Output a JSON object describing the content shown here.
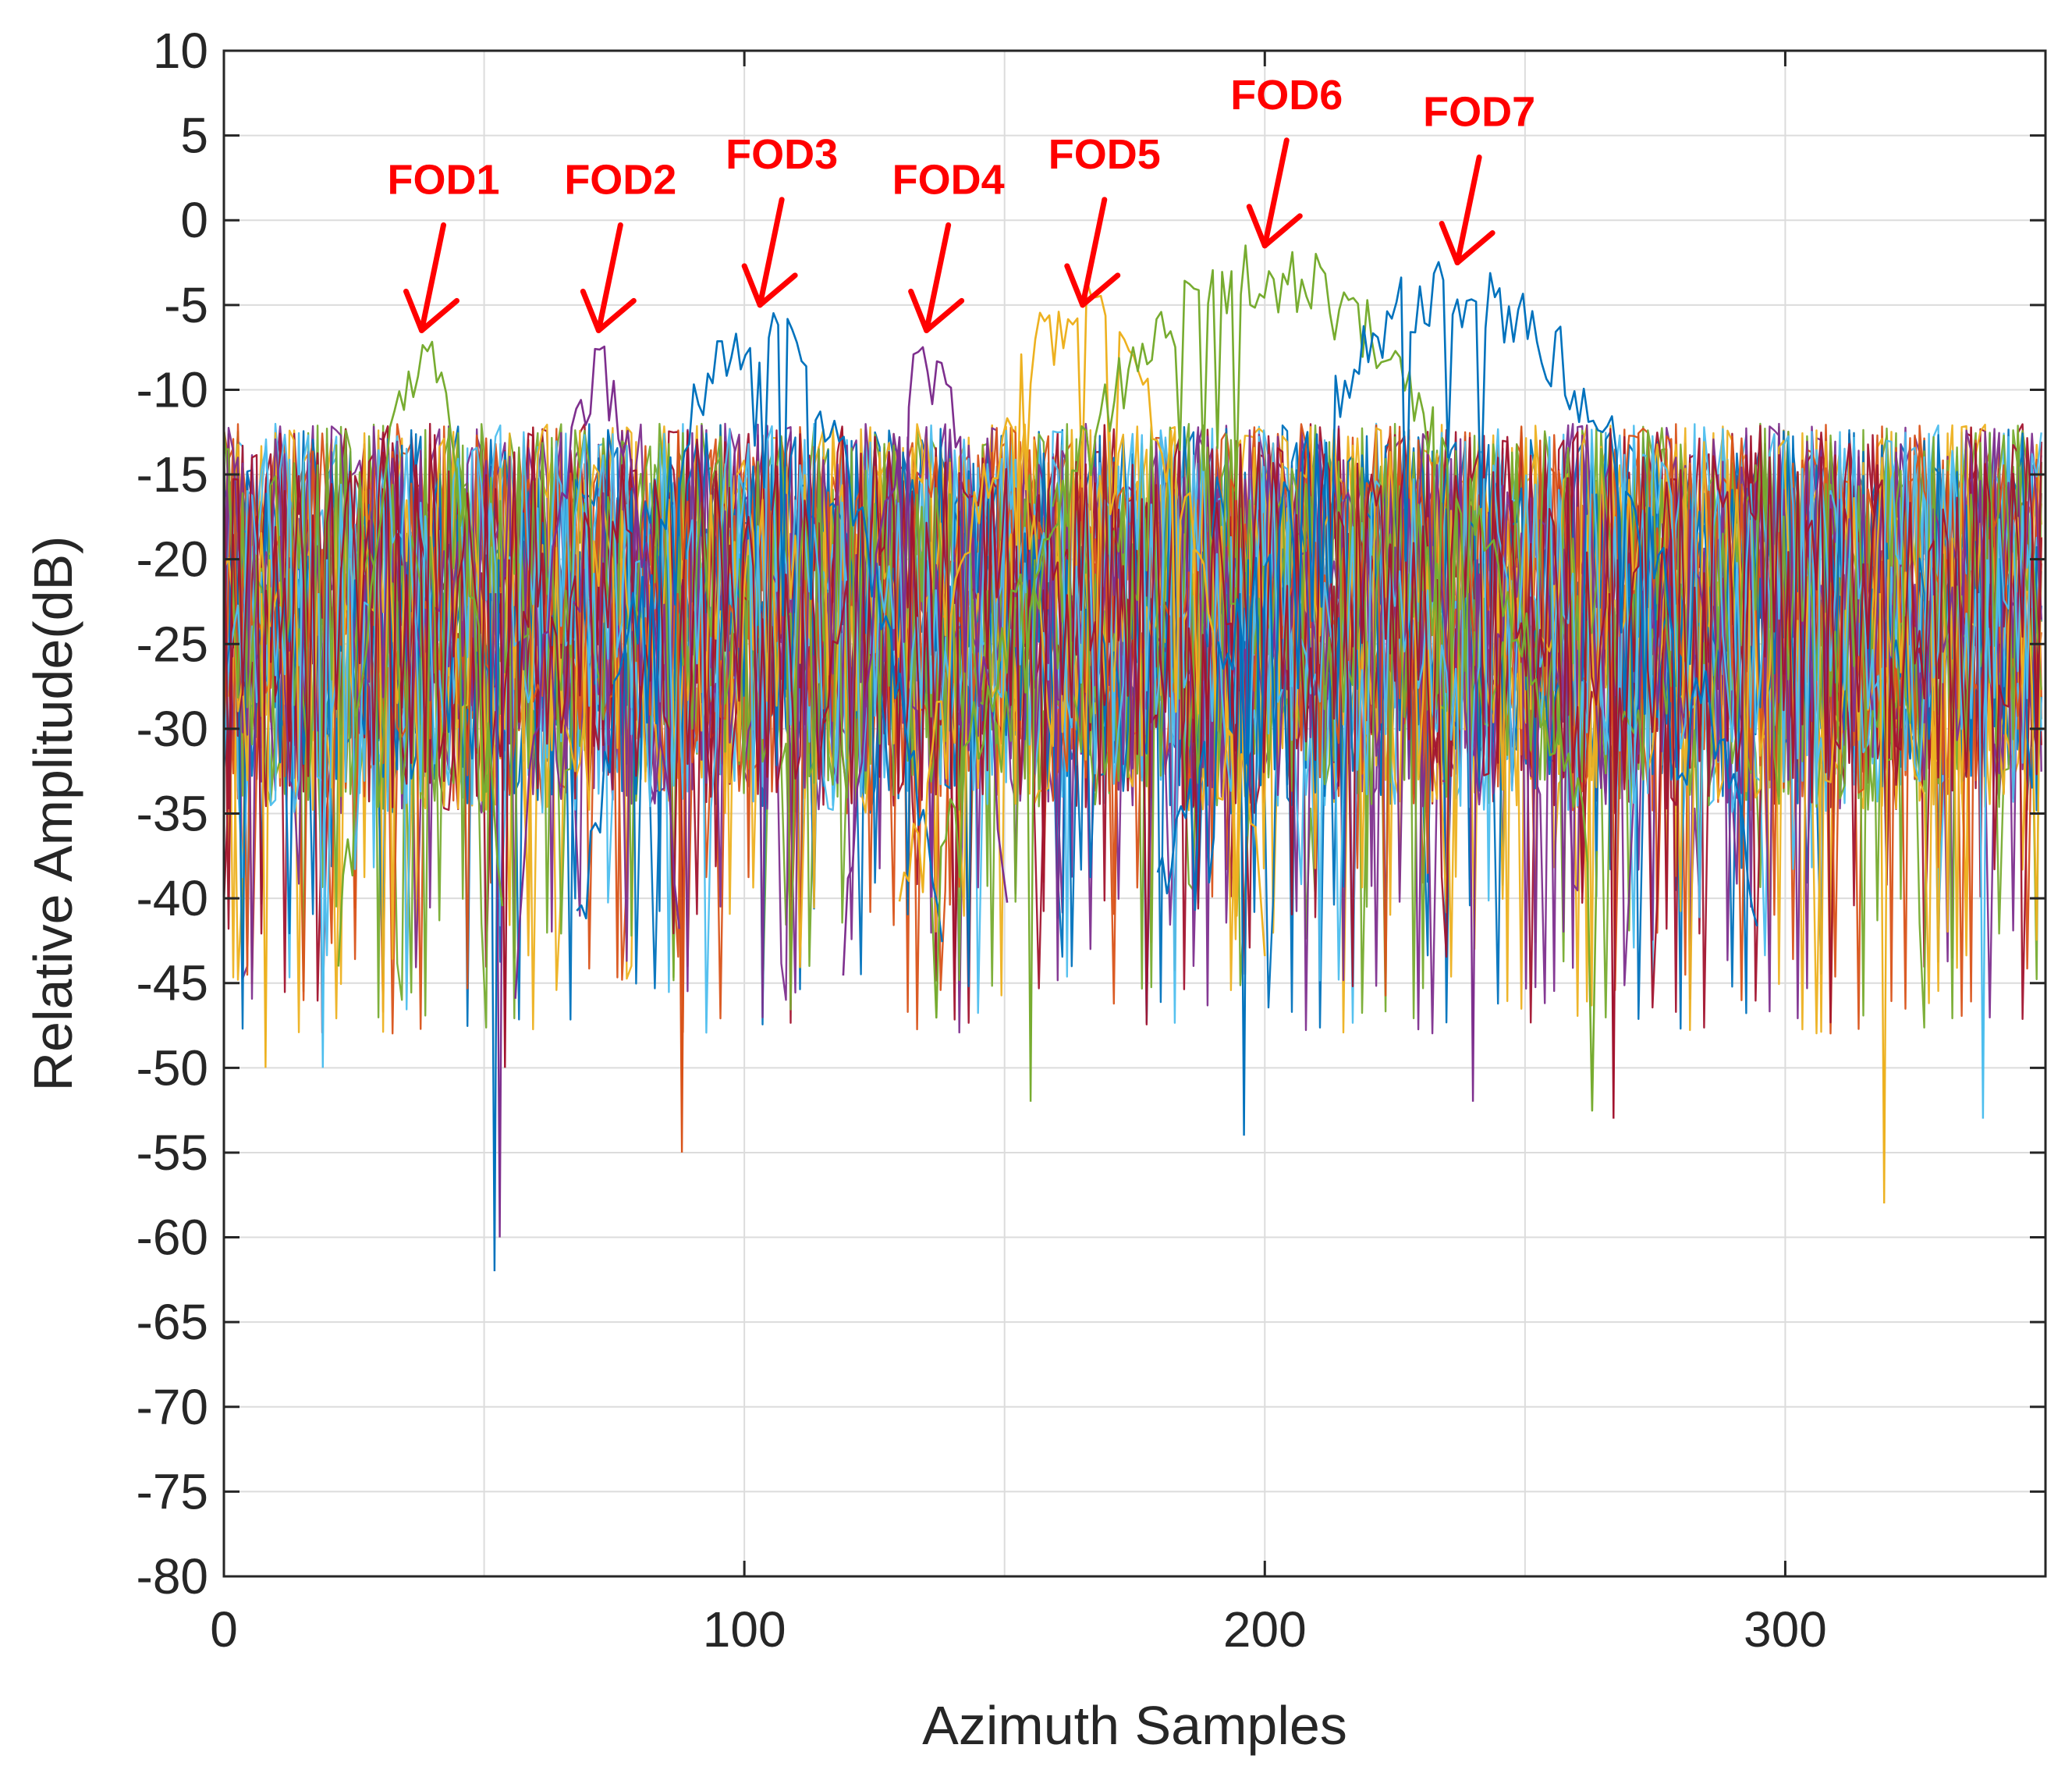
{
  "chart_data": {
    "type": "line",
    "title": "",
    "xlabel": "Azimuth Samples",
    "ylabel": "Relative Amplitude(dB)",
    "xlim": [
      0,
      350
    ],
    "ylim": [
      -80,
      10
    ],
    "xticks": [
      0,
      100,
      200,
      300
    ],
    "yticks": [
      10,
      5,
      0,
      -5,
      -10,
      -15,
      -20,
      -25,
      -30,
      -35,
      -40,
      -45,
      -50,
      -55,
      -60,
      -65,
      -70,
      -75,
      -80
    ],
    "grid": true,
    "legend": "none",
    "noise_floor_db": [
      -35,
      -12
    ],
    "series_colors": [
      "#0072bd",
      "#d95319",
      "#edb120",
      "#7e2f8e",
      "#77ac30",
      "#4dbeee",
      "#a2142f"
    ],
    "deep_nulls": [
      {
        "x": 52,
        "y": -62
      },
      {
        "x": 53,
        "y": -60
      },
      {
        "x": 54,
        "y": -50
      },
      {
        "x": 8,
        "y": -50
      },
      {
        "x": 19,
        "y": -50
      },
      {
        "x": 88,
        "y": -55
      },
      {
        "x": 155,
        "y": -52
      },
      {
        "x": 196,
        "y": -54
      },
      {
        "x": 240,
        "y": -52
      },
      {
        "x": 267,
        "y": -53
      },
      {
        "x": 319,
        "y": -58
      },
      {
        "x": 338,
        "y": -53
      }
    ],
    "targets": [
      {
        "name": "FOD1",
        "x": 38,
        "peak": -6,
        "width": 10,
        "color": "#77ac30"
      },
      {
        "name": "FOD2",
        "x": 72,
        "peak": -7,
        "width": 10,
        "color": "#7e2f8e"
      },
      {
        "name": "FOD3",
        "x": 103,
        "peak": -4.5,
        "width": 22,
        "color": "#0072bd"
      },
      {
        "name": "FOD4",
        "x": 135,
        "peak": -6.5,
        "width": 10,
        "color": "#7e2f8e"
      },
      {
        "name": "FOD5",
        "x": 165,
        "peak": -3.5,
        "width": 22,
        "color": "#edb120"
      },
      {
        "name": "FOD6",
        "x": 200,
        "peak": -1,
        "width": 40,
        "color": "#77ac30"
      },
      {
        "name": "FOD7",
        "x": 237,
        "peak": -2,
        "width": 36,
        "color": "#0072bd"
      }
    ],
    "annotations": [
      {
        "text": "FOD1",
        "x": 38,
        "y": -6.5
      },
      {
        "text": "FOD2",
        "x": 72,
        "y": -6.5
      },
      {
        "text": "FOD3",
        "x": 103,
        "y": -5
      },
      {
        "text": "FOD4",
        "x": 135,
        "y": -6.5
      },
      {
        "text": "FOD5",
        "x": 165,
        "y": -5
      },
      {
        "text": "FOD6",
        "x": 200,
        "y": -1.5
      },
      {
        "text": "FOD7",
        "x": 237,
        "y": -2.5
      }
    ]
  }
}
